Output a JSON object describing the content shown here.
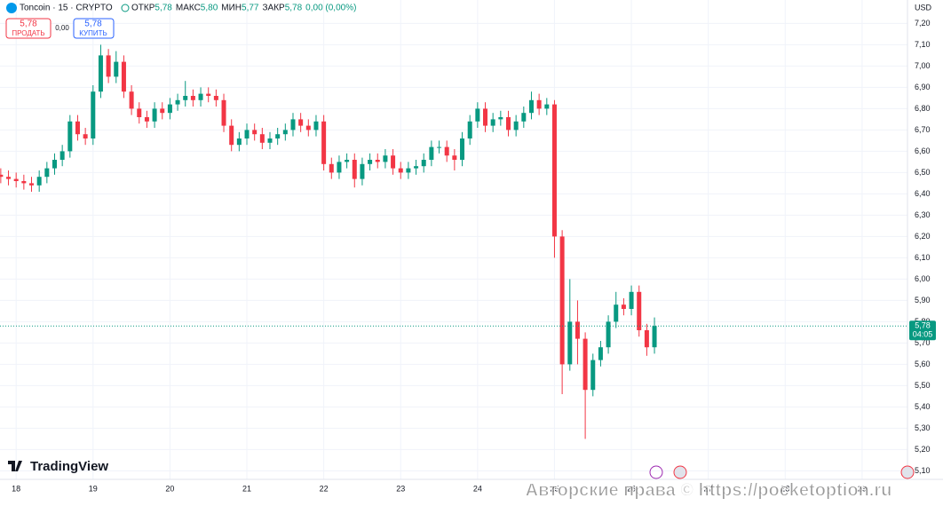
{
  "chart_data": {
    "type": "candlestick",
    "symbol": "Toncoin · 15 · CRYPTO",
    "ohlc_labels": [
      {
        "name": "ОТКР",
        "value": "5,78"
      },
      {
        "name": "МАКС",
        "value": "5,80"
      },
      {
        "name": "МИН",
        "value": "5,77"
      },
      {
        "name": "ЗАКР",
        "value": "5,78"
      }
    ],
    "change": "0,00 (0,00%)",
    "sell": {
      "price": "5,78",
      "label": "ПРОДАТЬ"
    },
    "spread": "0,00",
    "buy": {
      "price": "5,78",
      "label": "КУПИТЬ"
    },
    "currency": "USD",
    "brand": "TradingView",
    "watermark": "Авторские права © https://pocketoption.ru",
    "last_price": {
      "value": 5.78,
      "label": "5,78"
    },
    "countdown": "04:05",
    "up_color": "#089981",
    "down_color": "#f23645",
    "grid": true,
    "xlim": [
      17.79,
      29.59
    ],
    "xticks": [
      18,
      19,
      20,
      21,
      22,
      23,
      24,
      25,
      26,
      27,
      28,
      29
    ],
    "ylim": [
      5.06,
      7.31
    ],
    "yticks": [
      {
        "value": 5.1,
        "label": "5,10"
      },
      {
        "value": 5.2,
        "label": "5,20"
      },
      {
        "value": 5.3,
        "label": "5,30"
      },
      {
        "value": 5.4,
        "label": "5,40"
      },
      {
        "value": 5.5,
        "label": "5,50"
      },
      {
        "value": 5.6,
        "label": "5,60"
      },
      {
        "value": 5.7,
        "label": "5,70"
      },
      {
        "value": 5.8,
        "label": "5,80"
      },
      {
        "value": 5.9,
        "label": "5,90"
      },
      {
        "value": 6.0,
        "label": "6,00"
      },
      {
        "value": 6.1,
        "label": "6,10"
      },
      {
        "value": 6.2,
        "label": "6,20"
      },
      {
        "value": 6.3,
        "label": "6,30"
      },
      {
        "value": 6.4,
        "label": "6,40"
      },
      {
        "value": 6.5,
        "label": "6,50"
      },
      {
        "value": 6.6,
        "label": "6,60"
      },
      {
        "value": 6.7,
        "label": "6,70"
      },
      {
        "value": 6.8,
        "label": "6,80"
      },
      {
        "value": 6.9,
        "label": "6,90"
      },
      {
        "value": 7.0,
        "label": "7,00"
      },
      {
        "value": 7.1,
        "label": "7,10"
      },
      {
        "value": 7.2,
        "label": "7,20"
      }
    ],
    "x": [
      17.8,
      17.9,
      18.0,
      18.1,
      18.2,
      18.3,
      18.4,
      18.5,
      18.6,
      18.7,
      18.8,
      18.9,
      19.0,
      19.1,
      19.2,
      19.3,
      19.4,
      19.5,
      19.6,
      19.7,
      19.8,
      19.9,
      20.0,
      20.1,
      20.2,
      20.3,
      20.4,
      20.5,
      20.6,
      20.7,
      20.8,
      20.9,
      21.0,
      21.1,
      21.2,
      21.3,
      21.4,
      21.5,
      21.6,
      21.7,
      21.8,
      21.9,
      22.0,
      22.1,
      22.2,
      22.3,
      22.4,
      22.5,
      22.6,
      22.7,
      22.8,
      22.9,
      23.0,
      23.1,
      23.2,
      23.3,
      23.4,
      23.5,
      23.6,
      23.7,
      23.8,
      23.9,
      24.0,
      24.1,
      24.2,
      24.3,
      24.4,
      24.5,
      24.6,
      24.7,
      24.8,
      24.9,
      25.0,
      25.1,
      25.2,
      25.3,
      25.4,
      25.5,
      25.6,
      25.7,
      25.8,
      25.9,
      26.0,
      26.1,
      26.2,
      26.3
    ],
    "open": [
      6.49,
      6.48,
      6.47,
      6.46,
      6.45,
      6.44,
      6.48,
      6.52,
      6.56,
      6.6,
      6.74,
      6.68,
      6.66,
      6.88,
      7.05,
      6.95,
      7.02,
      6.88,
      6.8,
      6.76,
      6.74,
      6.8,
      6.78,
      6.82,
      6.84,
      6.86,
      6.84,
      6.87,
      6.86,
      6.84,
      6.72,
      6.63,
      6.66,
      6.7,
      6.68,
      6.64,
      6.66,
      6.68,
      6.7,
      6.75,
      6.72,
      6.7,
      6.74,
      6.54,
      6.5,
      6.55,
      6.56,
      6.47,
      6.54,
      6.56,
      6.55,
      6.58,
      6.52,
      6.5,
      6.52,
      6.53,
      6.56,
      6.62,
      6.62,
      6.58,
      6.56,
      6.66,
      6.74,
      6.8,
      6.72,
      6.75,
      6.76,
      6.7,
      6.74,
      6.78,
      6.84,
      6.8,
      6.82,
      6.2,
      5.6,
      5.8,
      5.72,
      5.48,
      5.62,
      5.68,
      5.8,
      5.88,
      5.86,
      5.94,
      5.76,
      5.68
    ],
    "high": [
      6.52,
      6.51,
      6.5,
      6.49,
      6.48,
      6.51,
      6.55,
      6.59,
      6.63,
      6.77,
      6.77,
      6.71,
      6.91,
      7.1,
      7.08,
      7.07,
      7.05,
      6.91,
      6.83,
      6.79,
      6.83,
      6.83,
      6.85,
      6.87,
      6.93,
      6.89,
      6.9,
      6.9,
      6.89,
      6.87,
      6.75,
      6.69,
      6.73,
      6.73,
      6.71,
      6.69,
      6.71,
      6.73,
      6.78,
      6.78,
      6.75,
      6.77,
      6.77,
      6.57,
      6.58,
      6.59,
      6.59,
      6.57,
      6.59,
      6.59,
      6.61,
      6.61,
      6.55,
      6.55,
      6.56,
      6.59,
      6.65,
      6.65,
      6.65,
      6.61,
      6.69,
      6.77,
      6.83,
      6.83,
      6.78,
      6.79,
      6.79,
      6.77,
      6.81,
      6.88,
      6.87,
      6.85,
      6.84,
      6.23,
      6.0,
      5.9,
      5.75,
      5.65,
      5.71,
      5.83,
      5.94,
      5.91,
      5.97,
      5.97,
      5.79,
      5.82
    ],
    "low": [
      6.45,
      6.44,
      6.43,
      6.42,
      6.41,
      6.41,
      6.45,
      6.49,
      6.53,
      6.57,
      6.65,
      6.63,
      6.63,
      6.85,
      6.92,
      6.92,
      6.85,
      6.77,
      6.73,
      6.71,
      6.71,
      6.75,
      6.75,
      6.79,
      6.81,
      6.81,
      6.81,
      6.83,
      6.81,
      6.69,
      6.6,
      6.6,
      6.63,
      6.65,
      6.61,
      6.61,
      6.63,
      6.65,
      6.67,
      6.69,
      6.67,
      6.67,
      6.51,
      6.47,
      6.47,
      6.52,
      6.43,
      6.44,
      6.51,
      6.52,
      6.52,
      6.49,
      6.47,
      6.47,
      6.49,
      6.5,
      6.53,
      6.59,
      6.55,
      6.51,
      6.53,
      6.63,
      6.71,
      6.69,
      6.69,
      6.72,
      6.67,
      6.67,
      6.71,
      6.75,
      6.77,
      6.77,
      6.1,
      5.46,
      5.57,
      5.6,
      5.25,
      5.45,
      5.59,
      5.65,
      5.77,
      5.83,
      5.83,
      5.73,
      5.64,
      5.65
    ],
    "close": [
      6.48,
      6.47,
      6.46,
      6.45,
      6.44,
      6.48,
      6.52,
      6.56,
      6.6,
      6.74,
      6.68,
      6.66,
      6.88,
      7.05,
      6.95,
      7.02,
      6.88,
      6.8,
      6.76,
      6.74,
      6.8,
      6.78,
      6.82,
      6.84,
      6.86,
      6.84,
      6.87,
      6.86,
      6.84,
      6.72,
      6.63,
      6.66,
      6.7,
      6.68,
      6.64,
      6.66,
      6.68,
      6.7,
      6.75,
      6.72,
      6.7,
      6.74,
      6.54,
      6.5,
      6.55,
      6.56,
      6.47,
      6.54,
      6.56,
      6.55,
      6.58,
      6.52,
      6.5,
      6.52,
      6.53,
      6.56,
      6.62,
      6.62,
      6.58,
      6.56,
      6.66,
      6.74,
      6.8,
      6.72,
      6.75,
      6.76,
      6.7,
      6.74,
      6.78,
      6.84,
      6.8,
      6.82,
      6.2,
      5.6,
      5.8,
      5.72,
      5.48,
      5.62,
      5.68,
      5.8,
      5.88,
      5.86,
      5.94,
      5.76,
      5.68,
      5.78
    ]
  }
}
